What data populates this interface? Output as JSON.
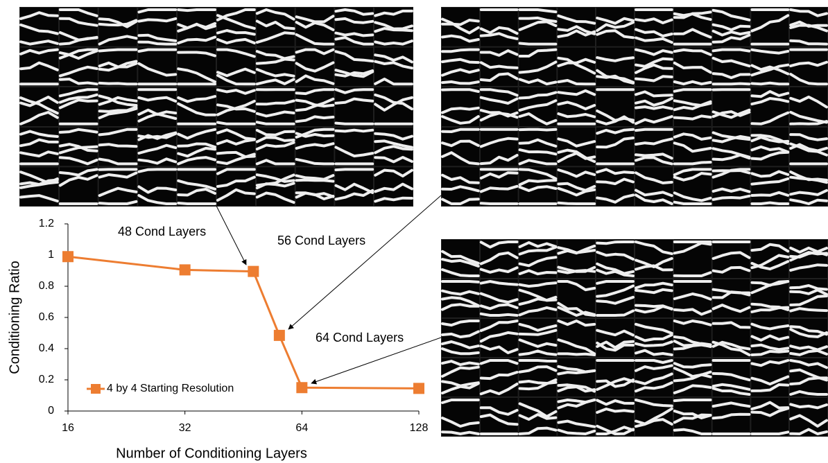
{
  "chart_data": {
    "type": "line",
    "x": [
      16,
      32,
      48,
      56,
      64,
      128
    ],
    "series": [
      {
        "name": "4 by 4 Starting Resolution",
        "color": "#ed7d31",
        "values": [
          0.99,
          0.905,
          0.895,
          0.485,
          0.15,
          0.145
        ]
      }
    ],
    "xlabel": "Number of Conditioning Layers",
    "ylabel": "Conditioning Ratio",
    "xlim": [
      16,
      128
    ],
    "xticks": [
      16,
      32,
      64,
      128
    ],
    "xscale": "log2",
    "ylim": [
      0,
      1.2
    ],
    "yticks": [
      0,
      0.2,
      0.4,
      0.6,
      0.8,
      1,
      1.2
    ],
    "grid": false,
    "legend": "lower left",
    "annotations": [
      "48 Cond Layers",
      "56 Cond Layers",
      "64 Cond Layers"
    ]
  }
}
